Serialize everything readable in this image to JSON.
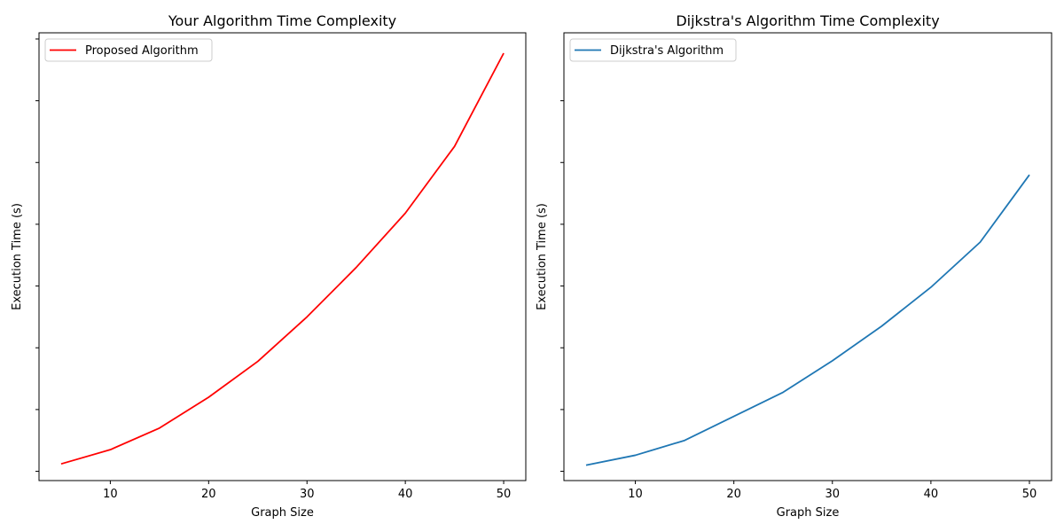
{
  "chart_data": [
    {
      "type": "line",
      "title": "Your Algorithm Time Complexity",
      "xlabel": "Graph Size",
      "ylabel": "Execution Time (s)",
      "xlim": [
        2.75,
        52.25
      ],
      "ylim": [
        -0.015,
        0.71
      ],
      "xticks": [
        10,
        20,
        30,
        40,
        50
      ],
      "yticks": [
        0.0,
        0.1,
        0.2,
        0.3,
        0.4,
        0.5,
        0.6,
        0.7
      ],
      "ytick_labels_visible": false,
      "grid": false,
      "legend": "upper left",
      "series": [
        {
          "name": "Proposed Algorithm",
          "color": "#ff0000",
          "x": [
            5,
            10,
            15,
            20,
            25,
            30,
            35,
            40,
            45,
            50
          ],
          "y": [
            0.012,
            0.035,
            0.07,
            0.12,
            0.178,
            0.25,
            0.33,
            0.418,
            0.526,
            0.677
          ]
        }
      ]
    },
    {
      "type": "line",
      "title": "Dijkstra's Algorithm Time Complexity",
      "xlabel": "Graph Size",
      "ylabel": "Execution Time (s)",
      "xlim": [
        2.75,
        52.25
      ],
      "ylim": [
        -0.015,
        0.71
      ],
      "xticks": [
        10,
        20,
        30,
        40,
        50
      ],
      "yticks": [
        0.0,
        0.1,
        0.2,
        0.3,
        0.4,
        0.5,
        0.6
      ],
      "ytick_labels_visible": false,
      "grid": false,
      "legend": "upper left",
      "series": [
        {
          "name": "Dijkstra's Algorithm",
          "color": "#1f77b4",
          "x": [
            5,
            10,
            15,
            20,
            25,
            30,
            35,
            40,
            45,
            50
          ],
          "y": [
            0.01,
            0.026,
            0.05,
            0.089,
            0.128,
            0.179,
            0.235,
            0.298,
            0.371,
            0.48
          ]
        }
      ]
    }
  ]
}
